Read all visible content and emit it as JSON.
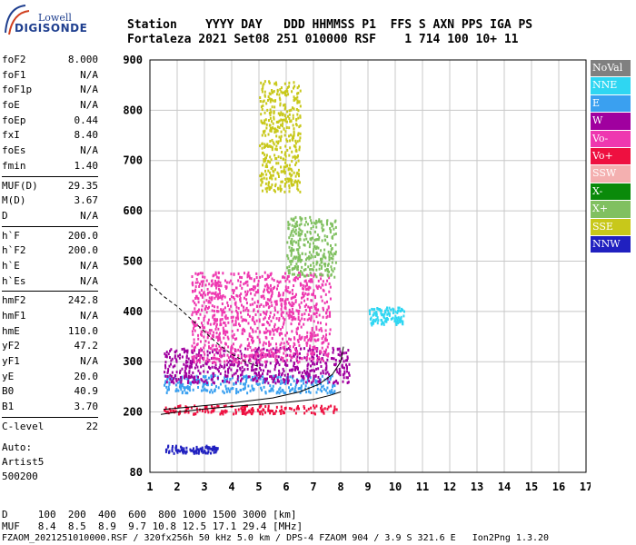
{
  "logo": {
    "line1": "Lowell",
    "line2": "DIGISONDE"
  },
  "header": {
    "line1": "Station    YYYY DAY   DDD HHMMSS P1  FFS S AXN PPS IGA PS",
    "line2": "Fortaleza 2021 Set08 251 010000 RSF    1 714 100 10+ 11"
  },
  "params": [
    {
      "name": "foF2",
      "value": "8.000"
    },
    {
      "name": "foF1",
      "value": "N/A"
    },
    {
      "name": "foF1p",
      "value": "N/A"
    },
    {
      "name": "foE",
      "value": "N/A"
    },
    {
      "name": "foEp",
      "value": "0.44"
    },
    {
      "name": "fxI",
      "value": "8.40"
    },
    {
      "name": "foEs",
      "value": "N/A"
    },
    {
      "name": "fmin",
      "value": "1.40"
    },
    {
      "sep": true
    },
    {
      "name": "MUF(D)",
      "value": "29.35"
    },
    {
      "name": "M(D)",
      "value": "3.67"
    },
    {
      "name": "D",
      "value": "N/A"
    },
    {
      "sep": true
    },
    {
      "name": "h`F",
      "value": "200.0"
    },
    {
      "name": "h`F2",
      "value": "200.0"
    },
    {
      "name": "h`E",
      "value": "N/A"
    },
    {
      "name": "h`Es",
      "value": "N/A"
    },
    {
      "sep": true
    },
    {
      "name": "hmF2",
      "value": "242.8"
    },
    {
      "name": "hmF1",
      "value": "N/A"
    },
    {
      "name": "hmE",
      "value": "110.0"
    },
    {
      "name": "yF2",
      "value": "47.2"
    },
    {
      "name": "yF1",
      "value": "N/A"
    },
    {
      "name": "yE",
      "value": "20.0"
    },
    {
      "name": "B0",
      "value": "40.9"
    },
    {
      "name": "B1",
      "value": "3.70"
    },
    {
      "sep": true
    },
    {
      "name": "C-level",
      "value": "22"
    }
  ],
  "auto": {
    "line1": "Auto:",
    "line2": "Artist5",
    "line3": "500200"
  },
  "footer": {
    "line1": "D     100  200  400  600  800 1000 1500 3000 [km]",
    "line2": "MUF   8.4  8.5  8.9  9.7 10.8 12.5 17.1 29.4 [MHz]",
    "line3": "FZAOM_2021251010000.RSF / 320fx256h 50 kHz 5.0 km / DPS-4 FZAOM 904 / 3.9 S 321.6 E   Ion2Png 1.3.20"
  },
  "legend": [
    {
      "label": "NoVal",
      "color": "#808080"
    },
    {
      "label": "NNE",
      "color": "#2fd6f2"
    },
    {
      "label": "E",
      "color": "#3aa0f0"
    },
    {
      "label": "W",
      "color": "#a0009f"
    },
    {
      "label": "Vo-",
      "color": "#ee38b0"
    },
    {
      "label": "Vo+",
      "color": "#ee1040"
    },
    {
      "label": "SSW",
      "color": "#f4b0b0"
    },
    {
      "label": "X-",
      "color": "#0a8a0a"
    },
    {
      "label": "X+",
      "color": "#80c060"
    },
    {
      "label": "SSE",
      "color": "#c8c81a"
    },
    {
      "label": "NNW",
      "color": "#2020c0"
    }
  ],
  "chart_data": {
    "type": "scatter",
    "xlabel": "",
    "ylabel": "",
    "xlim": [
      1,
      17
    ],
    "ylim": [
      80,
      900
    ],
    "xticks": [
      1,
      2,
      3,
      4,
      5,
      6,
      7,
      8,
      9,
      10,
      11,
      12,
      13,
      14,
      15,
      16,
      17
    ],
    "yticks": [
      80,
      200,
      300,
      400,
      500,
      600,
      700,
      800,
      900
    ],
    "grid": true,
    "legend_position": "right",
    "traces": [
      {
        "name": "profile-curve",
        "color": "#000000",
        "points": [
          [
            1.4,
            195
          ],
          [
            2,
            200
          ],
          [
            3,
            206
          ],
          [
            4,
            211
          ],
          [
            5,
            215
          ],
          [
            6,
            219
          ],
          [
            7,
            225
          ],
          [
            7.6,
            233
          ],
          [
            8,
            240
          ]
        ]
      },
      {
        "name": "O-trace",
        "color": "#000000",
        "points": [
          [
            1.5,
            205
          ],
          [
            2.5,
            210
          ],
          [
            4,
            218
          ],
          [
            5.5,
            228
          ],
          [
            6.5,
            240
          ],
          [
            7.2,
            255
          ],
          [
            7.7,
            275
          ],
          [
            8,
            300
          ],
          [
            8.1,
            330
          ]
        ]
      },
      {
        "name": "dashed-curve",
        "color": "#000000",
        "points": [
          [
            1,
            455
          ],
          [
            1.5,
            430
          ],
          [
            2,
            410
          ],
          [
            2.5,
            385
          ],
          [
            3,
            360
          ],
          [
            3.5,
            335
          ],
          [
            4,
            315
          ],
          [
            4.5,
            300
          ],
          [
            5,
            290
          ]
        ]
      }
    ],
    "echo_bands": [
      {
        "color": "#ee1040",
        "xmin": 1.5,
        "xmax": 8,
        "hmin": 198,
        "hmax": 215
      },
      {
        "color": "#3aa0f0",
        "xmin": 1.5,
        "xmax": 7.8,
        "hmin": 240,
        "hmax": 275
      },
      {
        "color": "#a0009f",
        "xmin": 1.5,
        "xmax": 8.3,
        "hmin": 260,
        "hmax": 330
      },
      {
        "color": "#ee38b0",
        "xmin": 2.5,
        "xmax": 7.6,
        "hmin": 300,
        "hmax": 480
      },
      {
        "color": "#2fd6f2",
        "xmin": 9,
        "xmax": 10.3,
        "hmin": 375,
        "hmax": 410
      },
      {
        "color": "#2020c0",
        "xmin": 1.5,
        "xmax": 3.5,
        "hmin": 120,
        "hmax": 135
      },
      {
        "color": "#80c060",
        "xmin": 6,
        "xmax": 7.8,
        "hmin": 470,
        "hmax": 590
      },
      {
        "color": "#c8c81a",
        "xmin": 5,
        "xmax": 6.5,
        "hmin": 640,
        "hmax": 860
      }
    ]
  }
}
